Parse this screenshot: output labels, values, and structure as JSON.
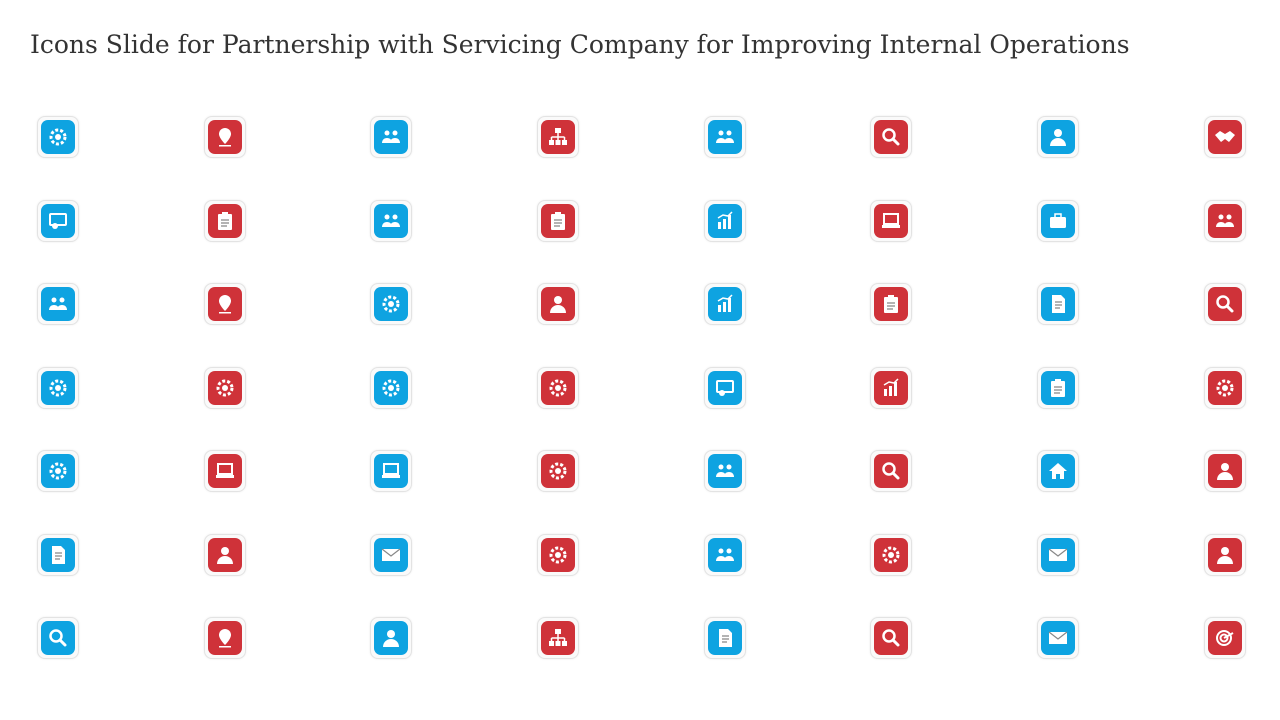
{
  "slide": {
    "title": "Icons Slide for Partnership with Servicing Company for Improving Internal Operations"
  },
  "colors": {
    "blue": "#0ea3e1",
    "red": "#cf3239"
  },
  "icons": [
    "monitor-gear-icon",
    "location-pin-icon",
    "org-people-dollar-icon",
    "hierarchy-chart-icon",
    "team-icon",
    "magnifier-document-icon",
    "businessman-icon",
    "handshake-icon",
    "database-search-icon",
    "clipboard-list-icon",
    "team-meeting-icon",
    "clipboard-icon",
    "document-chart-icon",
    "hand-settings-icon",
    "briefcase-icon",
    "rated-team-icon",
    "people-exchange-icon",
    "desk-clock-icon",
    "document-gear-icon",
    "businessman-dollar-icon",
    "bar-chart-icon",
    "clipboard-pen-icon",
    "documents-stack-icon",
    "magnifier-icon",
    "gear-wrench-icon",
    "gear-server-icon",
    "gear-people-icon",
    "document-gear-icon",
    "server-rack-icon",
    "hand-growth-icon",
    "rocket-stars-icon",
    "head-gear-icon",
    "hands-gear-icon",
    "laptop-icon",
    "person-laptop-icon",
    "hand-gear-icon",
    "team-group-icon",
    "coins-dollar-icon",
    "home-icon",
    "person-desk-icon",
    "document-list-icon",
    "person-profile-icon",
    "hand-arrows-up-icon",
    "gear-cycle-icon",
    "team-network-icon",
    "gears-icon",
    "email-at-icon",
    "shield-person-icon",
    "document-magnifier-icon",
    "calculator-dollar-icon",
    "person-trophy-dollar-icon",
    "wrench-coin-icon",
    "hand-globe-icon",
    "presentation-board-icon",
    "phone-email-icon",
    "target-arrow-icon"
  ]
}
